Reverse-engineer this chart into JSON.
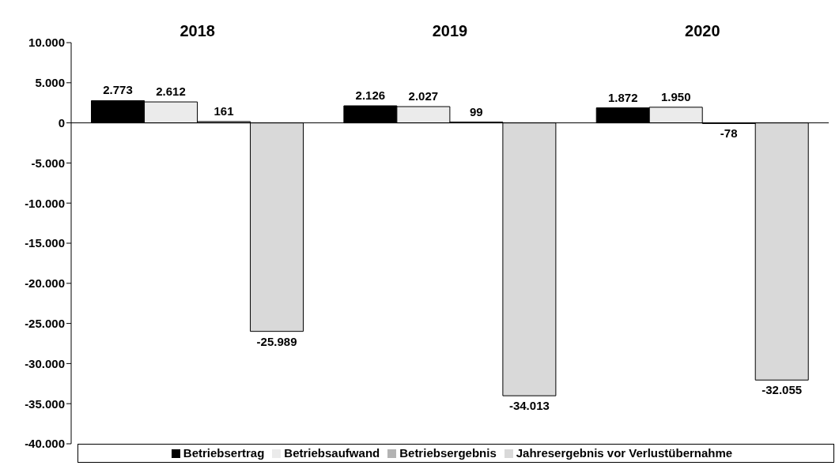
{
  "chart_data": {
    "type": "bar",
    "categories": [
      "2018",
      "2019",
      "2020"
    ],
    "series": [
      {
        "name": "Betriebsertrag",
        "color": "#000000",
        "values": [
          2773,
          2126,
          1872
        ],
        "value_labels": [
          "2.773",
          "2.126",
          "1.872"
        ]
      },
      {
        "name": "Betriebsaufwand",
        "color": "#ebebeb",
        "values": [
          2612,
          2027,
          1950
        ],
        "value_labels": [
          "2.612",
          "2.027",
          "1.950"
        ]
      },
      {
        "name": "Betriebsergebnis",
        "color": "#b3b3b3",
        "values": [
          161,
          99,
          -78
        ],
        "value_labels": [
          "161",
          "99",
          "-78"
        ]
      },
      {
        "name": "Jahresergebnis vor Verlustübernahme",
        "color": "#d9d9d9",
        "values": [
          -25989,
          -34013,
          -32055
        ],
        "value_labels": [
          "-25.989",
          "-34.013",
          "-32.055"
        ]
      }
    ],
    "ylim": [
      -40000,
      10000
    ],
    "yticks": [
      {
        "value": -40000,
        "label": "-40.000"
      },
      {
        "value": -35000,
        "label": "-35.000"
      },
      {
        "value": -30000,
        "label": "-30.000"
      },
      {
        "value": -25000,
        "label": "-25.000"
      },
      {
        "value": -20000,
        "label": "-20.000"
      },
      {
        "value": -15000,
        "label": "-15.000"
      },
      {
        "value": -10000,
        "label": "-10.000"
      },
      {
        "value": -5000,
        "label": "-5.000"
      },
      {
        "value": 0,
        "label": "0"
      },
      {
        "value": 5000,
        "label": "5.000"
      },
      {
        "value": 10000,
        "label": "10.000"
      }
    ],
    "ref_lines": [
      {
        "axis": "y",
        "value": 0,
        "color": "#000000"
      }
    ],
    "legend": "bottom"
  }
}
